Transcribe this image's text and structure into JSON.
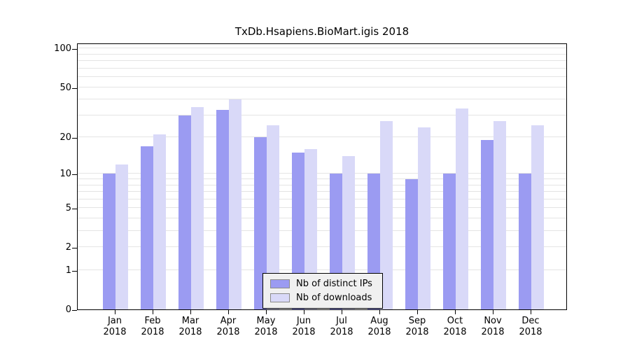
{
  "title": "TxDb.Hsapiens.BioMart.igis 2018",
  "chart_data": {
    "type": "bar",
    "title": "TxDb.Hsapiens.BioMart.igis 2018",
    "xlabel": "",
    "ylabel": "",
    "year": "2018",
    "categories": [
      "Jan",
      "Feb",
      "Mar",
      "Apr",
      "May",
      "Jun",
      "Jul",
      "Aug",
      "Sep",
      "Oct",
      "Nov",
      "Dec"
    ],
    "series": [
      {
        "name": "Nb of distinct IPs",
        "color": "#9b9bf2",
        "values": [
          10,
          17,
          30,
          33,
          20,
          15,
          10,
          10,
          9,
          10,
          19,
          10
        ]
      },
      {
        "name": "Nb of downloads",
        "color": "#d9d9f8",
        "values": [
          12,
          21,
          35,
          40,
          25,
          16,
          14,
          27,
          24,
          34,
          27,
          25
        ]
      }
    ],
    "yscale": "log1p",
    "yticks": [
      0,
      1,
      2,
      5,
      10,
      20,
      50,
      100
    ],
    "gridlines": [
      1,
      2,
      3,
      4,
      5,
      6,
      7,
      8,
      9,
      10,
      20,
      30,
      40,
      50,
      60,
      70,
      80,
      90,
      100
    ],
    "ymax_value": 111,
    "legend_position": "bottom-center-inside",
    "grid": true
  }
}
